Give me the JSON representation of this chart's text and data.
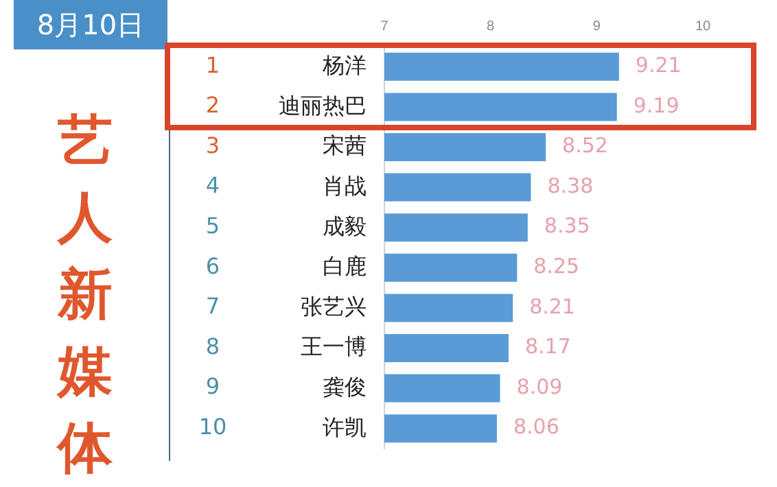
{
  "chart_data": {
    "type": "bar",
    "orientation": "horizontal",
    "title": "艺人新媒体",
    "subtitle": "8月10日",
    "categories": [
      "杨洋",
      "迪丽热巴",
      "宋茜",
      "肖战",
      "成毅",
      "白鹿",
      "张艺兴",
      "王一博",
      "龚俊",
      "许凯"
    ],
    "values": [
      9.21,
      9.19,
      8.52,
      8.38,
      8.35,
      8.25,
      8.21,
      8.17,
      8.09,
      8.06
    ],
    "color": "#5b9bd5",
    "xlim": [
      7,
      10
    ],
    "xticks": [
      7,
      8,
      9,
      10
    ],
    "grid": false,
    "data_labels": true,
    "annotations": [
      "1",
      "2",
      "3",
      "4",
      "5",
      "6",
      "7",
      "8",
      "9",
      "10"
    ]
  }
}
